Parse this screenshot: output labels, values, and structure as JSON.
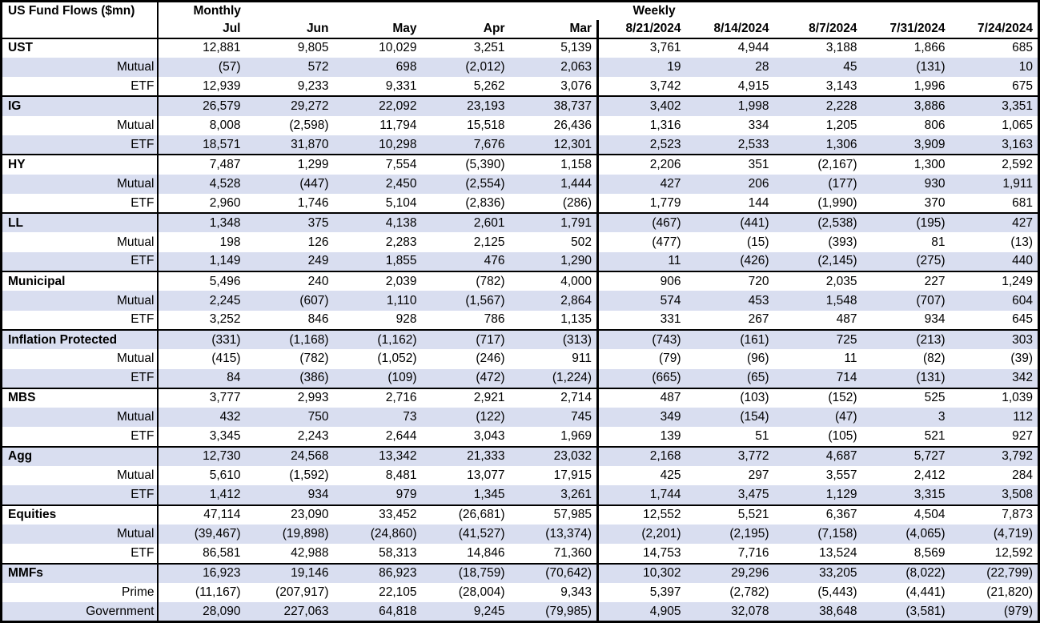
{
  "colors": {
    "row_shade": "#d9def0",
    "border": "#000000",
    "background": "#ffffff",
    "text": "#000000"
  },
  "chart_data": {
    "type": "table",
    "title": "US Fund Flows ($mn)",
    "sections": [
      {
        "label": "Monthly",
        "columns": [
          "Jul",
          "Jun",
          "May",
          "Apr",
          "Mar"
        ]
      },
      {
        "label": "Weekly",
        "columns": [
          "8/21/2024",
          "8/14/2024",
          "8/7/2024",
          "7/31/2024",
          "7/24/2024"
        ]
      }
    ],
    "row_groups": [
      {
        "rows": [
          {
            "label": "UST",
            "monthly": [
              "12,881",
              "9,805",
              "10,029",
              "3,251",
              "5,139"
            ],
            "weekly": [
              "3,761",
              "4,944",
              "3,188",
              "1,866",
              "685"
            ]
          },
          {
            "label": "Mutual",
            "monthly": [
              "(57)",
              "572",
              "698",
              "(2,012)",
              "2,063"
            ],
            "weekly": [
              "19",
              "28",
              "45",
              "(131)",
              "10"
            ]
          },
          {
            "label": "ETF",
            "monthly": [
              "12,939",
              "9,233",
              "9,331",
              "5,262",
              "3,076"
            ],
            "weekly": [
              "3,742",
              "4,915",
              "3,143",
              "1,996",
              "675"
            ]
          }
        ]
      },
      {
        "rows": [
          {
            "label": "IG",
            "monthly": [
              "26,579",
              "29,272",
              "22,092",
              "23,193",
              "38,737"
            ],
            "weekly": [
              "3,402",
              "1,998",
              "2,228",
              "3,886",
              "3,351"
            ]
          },
          {
            "label": "Mutual",
            "monthly": [
              "8,008",
              "(2,598)",
              "11,794",
              "15,518",
              "26,436"
            ],
            "weekly": [
              "1,316",
              "334",
              "1,205",
              "806",
              "1,065"
            ]
          },
          {
            "label": "ETF",
            "monthly": [
              "18,571",
              "31,870",
              "10,298",
              "7,676",
              "12,301"
            ],
            "weekly": [
              "2,523",
              "2,533",
              "1,306",
              "3,909",
              "3,163"
            ]
          }
        ]
      },
      {
        "rows": [
          {
            "label": "HY",
            "monthly": [
              "7,487",
              "1,299",
              "7,554",
              "(5,390)",
              "1,158"
            ],
            "weekly": [
              "2,206",
              "351",
              "(2,167)",
              "1,300",
              "2,592"
            ]
          },
          {
            "label": "Mutual",
            "monthly": [
              "4,528",
              "(447)",
              "2,450",
              "(2,554)",
              "1,444"
            ],
            "weekly": [
              "427",
              "206",
              "(177)",
              "930",
              "1,911"
            ]
          },
          {
            "label": "ETF",
            "monthly": [
              "2,960",
              "1,746",
              "5,104",
              "(2,836)",
              "(286)"
            ],
            "weekly": [
              "1,779",
              "144",
              "(1,990)",
              "370",
              "681"
            ]
          }
        ]
      },
      {
        "rows": [
          {
            "label": "LL",
            "monthly": [
              "1,348",
              "375",
              "4,138",
              "2,601",
              "1,791"
            ],
            "weekly": [
              "(467)",
              "(441)",
              "(2,538)",
              "(195)",
              "427"
            ]
          },
          {
            "label": "Mutual",
            "monthly": [
              "198",
              "126",
              "2,283",
              "2,125",
              "502"
            ],
            "weekly": [
              "(477)",
              "(15)",
              "(393)",
              "81",
              "(13)"
            ]
          },
          {
            "label": "ETF",
            "monthly": [
              "1,149",
              "249",
              "1,855",
              "476",
              "1,290"
            ],
            "weekly": [
              "11",
              "(426)",
              "(2,145)",
              "(275)",
              "440"
            ]
          }
        ]
      },
      {
        "rows": [
          {
            "label": "Municipal",
            "monthly": [
              "5,496",
              "240",
              "2,039",
              "(782)",
              "4,000"
            ],
            "weekly": [
              "906",
              "720",
              "2,035",
              "227",
              "1,249"
            ]
          },
          {
            "label": "Mutual",
            "monthly": [
              "2,245",
              "(607)",
              "1,110",
              "(1,567)",
              "2,864"
            ],
            "weekly": [
              "574",
              "453",
              "1,548",
              "(707)",
              "604"
            ]
          },
          {
            "label": "ETF",
            "monthly": [
              "3,252",
              "846",
              "928",
              "786",
              "1,135"
            ],
            "weekly": [
              "331",
              "267",
              "487",
              "934",
              "645"
            ]
          }
        ]
      },
      {
        "rows": [
          {
            "label": "Inflation Protected",
            "monthly": [
              "(331)",
              "(1,168)",
              "(1,162)",
              "(717)",
              "(313)"
            ],
            "weekly": [
              "(743)",
              "(161)",
              "725",
              "(213)",
              "303"
            ]
          },
          {
            "label": "Mutual",
            "monthly": [
              "(415)",
              "(782)",
              "(1,052)",
              "(246)",
              "911"
            ],
            "weekly": [
              "(79)",
              "(96)",
              "11",
              "(82)",
              "(39)"
            ]
          },
          {
            "label": "ETF",
            "monthly": [
              "84",
              "(386)",
              "(109)",
              "(472)",
              "(1,224)"
            ],
            "weekly": [
              "(665)",
              "(65)",
              "714",
              "(131)",
              "342"
            ]
          }
        ]
      },
      {
        "rows": [
          {
            "label": "MBS",
            "monthly": [
              "3,777",
              "2,993",
              "2,716",
              "2,921",
              "2,714"
            ],
            "weekly": [
              "487",
              "(103)",
              "(152)",
              "525",
              "1,039"
            ]
          },
          {
            "label": "Mutual",
            "monthly": [
              "432",
              "750",
              "73",
              "(122)",
              "745"
            ],
            "weekly": [
              "349",
              "(154)",
              "(47)",
              "3",
              "112"
            ]
          },
          {
            "label": "ETF",
            "monthly": [
              "3,345",
              "2,243",
              "2,644",
              "3,043",
              "1,969"
            ],
            "weekly": [
              "139",
              "51",
              "(105)",
              "521",
              "927"
            ]
          }
        ]
      },
      {
        "rows": [
          {
            "label": "Agg",
            "monthly": [
              "12,730",
              "24,568",
              "13,342",
              "21,333",
              "23,032"
            ],
            "weekly": [
              "2,168",
              "3,772",
              "4,687",
              "5,727",
              "3,792"
            ]
          },
          {
            "label": "Mutual",
            "monthly": [
              "5,610",
              "(1,592)",
              "8,481",
              "13,077",
              "17,915"
            ],
            "weekly": [
              "425",
              "297",
              "3,557",
              "2,412",
              "284"
            ]
          },
          {
            "label": "ETF",
            "monthly": [
              "1,412",
              "934",
              "979",
              "1,345",
              "3,261"
            ],
            "weekly": [
              "1,744",
              "3,475",
              "1,129",
              "3,315",
              "3,508"
            ]
          }
        ]
      },
      {
        "rows": [
          {
            "label": "Equities",
            "monthly": [
              "47,114",
              "23,090",
              "33,452",
              "(26,681)",
              "57,985"
            ],
            "weekly": [
              "12,552",
              "5,521",
              "6,367",
              "4,504",
              "7,873"
            ]
          },
          {
            "label": "Mutual",
            "monthly": [
              "(39,467)",
              "(19,898)",
              "(24,860)",
              "(41,527)",
              "(13,374)"
            ],
            "weekly": [
              "(2,201)",
              "(2,195)",
              "(7,158)",
              "(4,065)",
              "(4,719)"
            ]
          },
          {
            "label": "ETF",
            "monthly": [
              "86,581",
              "42,988",
              "58,313",
              "14,846",
              "71,360"
            ],
            "weekly": [
              "14,753",
              "7,716",
              "13,524",
              "8,569",
              "12,592"
            ]
          }
        ]
      },
      {
        "rows": [
          {
            "label": "MMFs",
            "monthly": [
              "16,923",
              "19,146",
              "86,923",
              "(18,759)",
              "(70,642)"
            ],
            "weekly": [
              "10,302",
              "29,296",
              "33,205",
              "(8,022)",
              "(22,799)"
            ]
          },
          {
            "label": "Prime",
            "monthly": [
              "(11,167)",
              "(207,917)",
              "22,105",
              "(28,004)",
              "9,343"
            ],
            "weekly": [
              "5,397",
              "(2,782)",
              "(5,443)",
              "(4,441)",
              "(21,820)"
            ]
          },
          {
            "label": "Government",
            "monthly": [
              "28,090",
              "227,063",
              "64,818",
              "9,245",
              "(79,985)"
            ],
            "weekly": [
              "4,905",
              "32,078",
              "38,648",
              "(3,581)",
              "(979)"
            ]
          }
        ]
      }
    ]
  }
}
